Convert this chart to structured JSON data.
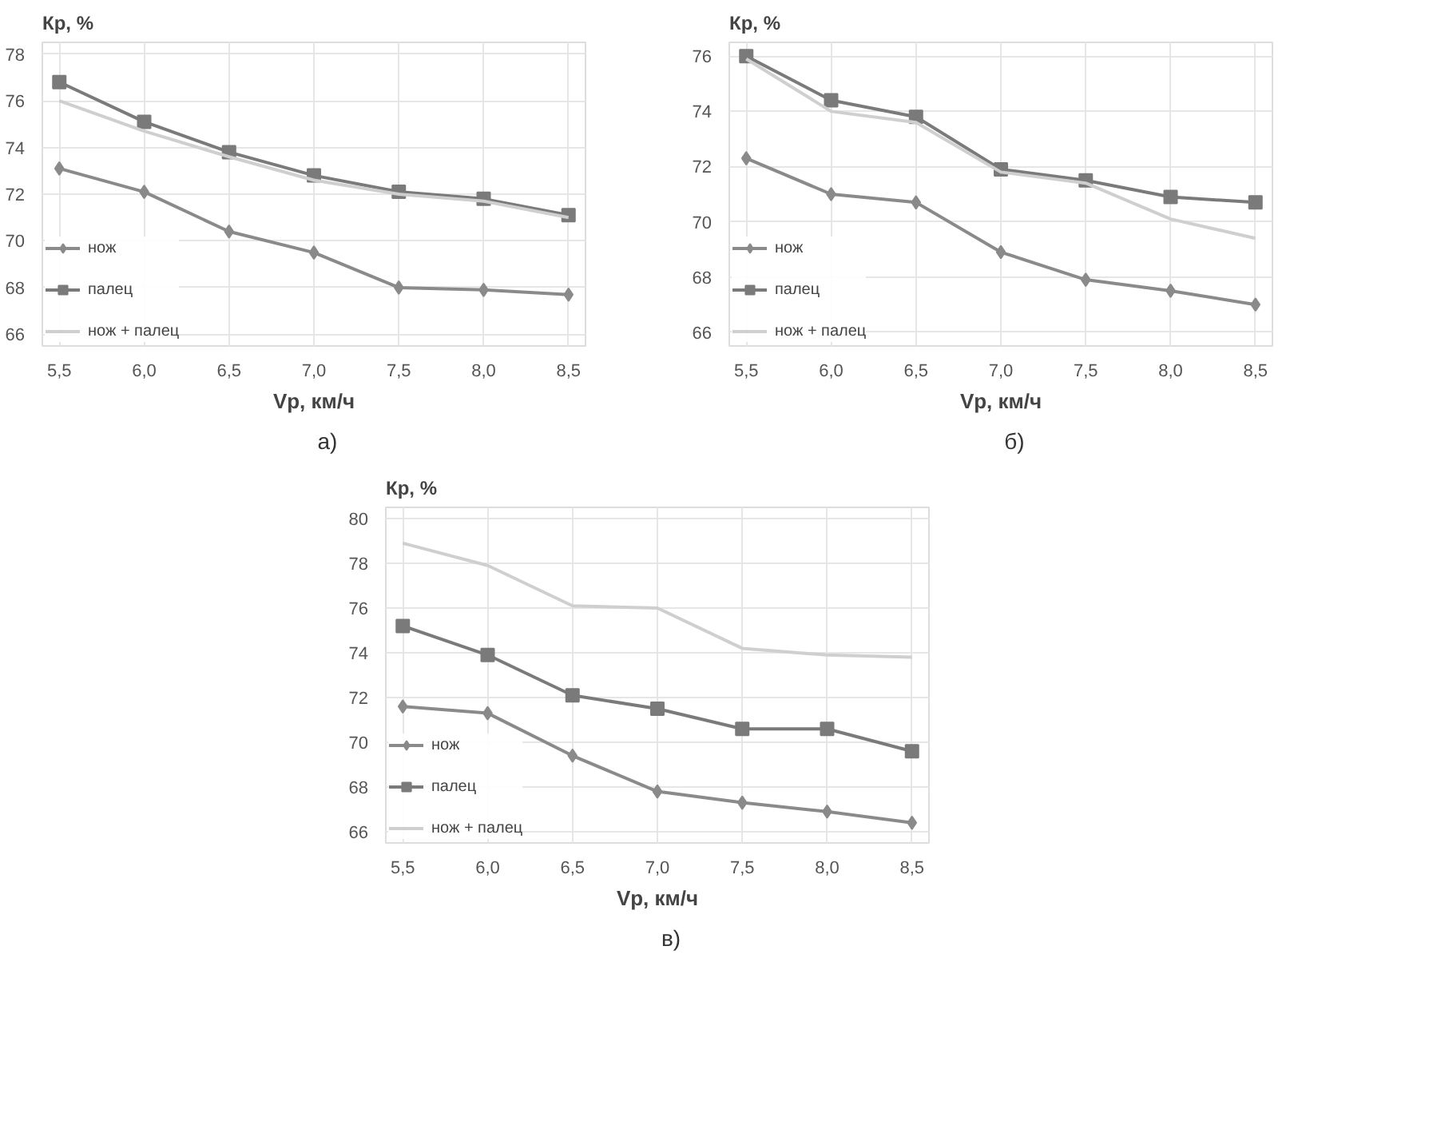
{
  "chart_data": [
    {
      "type": "line",
      "ylabel": "Кр, %",
      "xlabel": "Vр, км/ч",
      "annotations": [
        "а)"
      ],
      "x": [
        5.5,
        6.0,
        6.5,
        7.0,
        7.5,
        8.0,
        8.5
      ],
      "xlim": [
        5.4,
        8.6
      ],
      "xticks": [
        {
          "value": 5.5,
          "label": "5,5"
        },
        {
          "value": 6.0,
          "label": "6,0"
        },
        {
          "value": 6.5,
          "label": "6,5"
        },
        {
          "value": 7.0,
          "label": "7,0"
        },
        {
          "value": 7.5,
          "label": "7,5"
        },
        {
          "value": 8.0,
          "label": "8,0"
        },
        {
          "value": 8.5,
          "label": "8,5"
        }
      ],
      "ylim": [
        65.5,
        78.5
      ],
      "yticks": [
        66,
        68,
        70,
        72,
        74,
        76,
        78
      ],
      "grid": true,
      "legend": "bottom left",
      "series": [
        {
          "name": "нож",
          "color": "#8a8a8a",
          "marker": "diamond",
          "values": [
            73.1,
            72.1,
            70.4,
            69.5,
            68.0,
            67.9,
            67.7
          ]
        },
        {
          "name": "палец",
          "color": "#7a7a7a",
          "marker": "square",
          "values": [
            76.8,
            75.1,
            73.8,
            72.8,
            72.1,
            71.8,
            71.1
          ]
        },
        {
          "name": "нож + палец",
          "color": "#cfcfcf",
          "marker": "none",
          "values": [
            76.0,
            74.7,
            73.6,
            72.6,
            72.0,
            71.7,
            71.0
          ]
        }
      ]
    },
    {
      "type": "line",
      "ylabel": "Кр, %",
      "xlabel": "Vр, км/ч",
      "annotations": [
        "б)"
      ],
      "x": [
        5.5,
        6.0,
        6.5,
        7.0,
        7.5,
        8.0,
        8.5
      ],
      "xlim": [
        5.4,
        8.6
      ],
      "xticks": [
        {
          "value": 5.5,
          "label": "5,5"
        },
        {
          "value": 6.0,
          "label": "6,0"
        },
        {
          "value": 6.5,
          "label": "6,5"
        },
        {
          "value": 7.0,
          "label": "7,0"
        },
        {
          "value": 7.5,
          "label": "7,5"
        },
        {
          "value": 8.0,
          "label": "8,0"
        },
        {
          "value": 8.5,
          "label": "8,5"
        }
      ],
      "ylim": [
        65.5,
        76.5
      ],
      "yticks": [
        66,
        68,
        70,
        72,
        74,
        76
      ],
      "grid": true,
      "legend": "bottom left",
      "series": [
        {
          "name": "нож",
          "color": "#8a8a8a",
          "marker": "diamond",
          "values": [
            72.3,
            71.0,
            70.7,
            68.9,
            67.9,
            67.5,
            67.0
          ]
        },
        {
          "name": "палец",
          "color": "#7a7a7a",
          "marker": "square",
          "values": [
            76.0,
            74.4,
            73.8,
            71.9,
            71.5,
            70.9,
            70.7
          ]
        },
        {
          "name": "нож + палец",
          "color": "#cfcfcf",
          "marker": "none",
          "values": [
            75.9,
            74.0,
            73.6,
            71.8,
            71.4,
            70.1,
            69.4
          ]
        }
      ]
    },
    {
      "type": "line",
      "ylabel": "Кр, %",
      "xlabel": "Vр, км/ч",
      "annotations": [
        "в)"
      ],
      "x": [
        5.5,
        6.0,
        6.5,
        7.0,
        7.5,
        8.0,
        8.5
      ],
      "xlim": [
        5.4,
        8.6
      ],
      "xticks": [
        {
          "value": 5.5,
          "label": "5,5"
        },
        {
          "value": 6.0,
          "label": "6,0"
        },
        {
          "value": 6.5,
          "label": "6,5"
        },
        {
          "value": 7.0,
          "label": "7,0"
        },
        {
          "value": 7.5,
          "label": "7,5"
        },
        {
          "value": 8.0,
          "label": "8,0"
        },
        {
          "value": 8.5,
          "label": "8,5"
        }
      ],
      "ylim": [
        65.5,
        80.5
      ],
      "yticks": [
        66,
        68,
        70,
        72,
        74,
        76,
        78,
        80
      ],
      "grid": true,
      "legend": "bottom left",
      "series": [
        {
          "name": "нож",
          "color": "#8a8a8a",
          "marker": "diamond",
          "values": [
            71.6,
            71.3,
            69.4,
            67.8,
            67.3,
            66.9,
            66.4
          ]
        },
        {
          "name": "палец",
          "color": "#7a7a7a",
          "marker": "square",
          "values": [
            75.2,
            73.9,
            72.1,
            71.5,
            70.6,
            70.6,
            69.6
          ]
        },
        {
          "name": "нож + палец",
          "color": "#cfcfcf",
          "marker": "none",
          "values": [
            78.9,
            77.9,
            76.1,
            76.0,
            74.2,
            73.9,
            73.8
          ]
        }
      ]
    }
  ]
}
